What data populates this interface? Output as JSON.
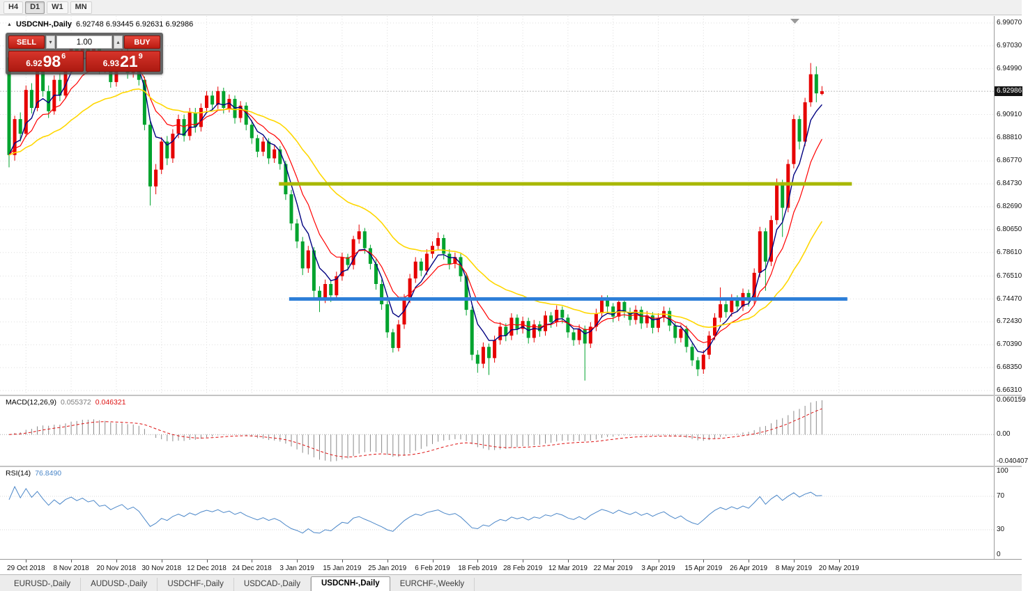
{
  "toolbar": {
    "timeframes": [
      {
        "label": "H4",
        "active": false
      },
      {
        "label": "D1",
        "active": true
      },
      {
        "label": "W1",
        "active": false
      },
      {
        "label": "MN",
        "active": false
      }
    ]
  },
  "chart": {
    "collapse_icon": "▲",
    "symbol_period": "USDCNH-,Daily",
    "ohlc_line": "6.92748 6.93445 6.92631 6.92986"
  },
  "one_click": {
    "sell_label": "SELL",
    "buy_label": "BUY",
    "volume": "1.00",
    "sell_price": {
      "prefix": "6.92",
      "big": "98",
      "sup": "6"
    },
    "buy_price": {
      "prefix": "6.93",
      "big": "21",
      "sup": "9"
    }
  },
  "price_axis": {
    "labels": [
      "6.99070",
      "6.97030",
      "6.94990",
      "6.90910",
      "6.88810",
      "6.86770",
      "6.84730",
      "6.82690",
      "6.80650",
      "6.78610",
      "6.76510",
      "6.74470",
      "6.72430",
      "6.70390",
      "6.68350",
      "6.66310"
    ],
    "current": "6.92986"
  },
  "macd_panel": {
    "label": "MACD(12,26,9)",
    "value_main": "0.055372",
    "value_signal": "0.046321",
    "axis_max": "0.060159",
    "axis_zero": "0.00",
    "axis_min": "-0.040407"
  },
  "rsi_panel": {
    "label": "RSI(14)",
    "value": "76.8490",
    "axis": [
      "100",
      "70",
      "30",
      "0"
    ],
    "axis_values": [
      100,
      70,
      30,
      0
    ]
  },
  "tabs": [
    {
      "label": "EURUSD-,Daily",
      "active": false
    },
    {
      "label": "AUDUSD-,Daily",
      "active": false
    },
    {
      "label": "USDCHF-,Daily",
      "active": false
    },
    {
      "label": "USDCAD-,Daily",
      "active": false
    },
    {
      "label": "USDCNH-,Daily",
      "active": true
    },
    {
      "label": "EURCHF-,Weekly",
      "active": false
    }
  ],
  "chart_data": {
    "type": "candlestick",
    "symbol": "USDCNH-",
    "timeframe": "Daily",
    "bull_color": "#e60000",
    "bear_color": "#00a32e",
    "grid_color": "#dedede",
    "current_price": 6.92986,
    "last_ohlc": {
      "open": 6.92748,
      "high": 6.93445,
      "low": 6.92631,
      "close": 6.92986
    },
    "date_labels": [
      "29 Oct 2018",
      "8 Nov 2018",
      "20 Nov 2018",
      "30 Nov 2018",
      "12 Dec 2018",
      "24 Dec 2018",
      "3 Jan 2019",
      "15 Jan 2019",
      "25 Jan 2019",
      "6 Feb 2019",
      "18 Feb 2019",
      "28 Feb 2019",
      "12 Mar 2019",
      "22 Mar 2019",
      "3 Apr 2019",
      "15 Apr 2019",
      "26 Apr 2019",
      "8 May 2019",
      "20 May 2019"
    ],
    "grid_start_index": 3,
    "grid_step": 8,
    "moving_averages": [
      {
        "type": "ema",
        "period": 5,
        "color": "#000080",
        "width": 1.4
      },
      {
        "type": "ema",
        "period": 10,
        "color": "#ff0000",
        "width": 1.2
      },
      {
        "type": "ema",
        "period": 30,
        "color": "#ffd700",
        "width": 1.6
      }
    ],
    "hlines": [
      {
        "name": "resistance-line-olive",
        "price": 6.8473,
        "color": "#a8b800",
        "width": 5,
        "from": 47.8,
        "to": 149.3
      },
      {
        "name": "support-line-blue",
        "price": 6.7447,
        "color": "#2e7fd8",
        "width": 5,
        "from": 49.6,
        "to": 148.5
      }
    ],
    "macd": {
      "fast": 12,
      "slow": 26,
      "signal": 9,
      "histogram_color": "#8a8a8a",
      "signal_color": "#dd1111"
    },
    "rsi": {
      "period": 14,
      "color": "#4a86c8",
      "levels": [
        70,
        30
      ]
    },
    "ohlc": [
      [
        6.96,
        6.968,
        6.862,
        6.873
      ],
      [
        6.873,
        6.908,
        6.868,
        6.905
      ],
      [
        6.905,
        6.911,
        6.885,
        6.892
      ],
      [
        6.892,
        6.935,
        6.889,
        6.931
      ],
      [
        6.931,
        6.937,
        6.91,
        6.915
      ],
      [
        6.915,
        6.952,
        6.912,
        6.948
      ],
      [
        6.948,
        6.953,
        6.925,
        6.93
      ],
      [
        6.93,
        6.935,
        6.906,
        6.912
      ],
      [
        6.912,
        6.944,
        6.909,
        6.94
      ],
      [
        6.94,
        6.946,
        6.921,
        6.926
      ],
      [
        6.926,
        6.957,
        6.923,
        6.953
      ],
      [
        6.953,
        6.974,
        6.95,
        6.97
      ],
      [
        6.97,
        6.975,
        6.953,
        6.958
      ],
      [
        6.958,
        6.979,
        6.955,
        6.975
      ],
      [
        6.975,
        6.979,
        6.957,
        6.962
      ],
      [
        6.962,
        6.975,
        6.958,
        6.971
      ],
      [
        6.971,
        6.974,
        6.945,
        6.95
      ],
      [
        6.95,
        6.96,
        6.946,
        6.956
      ],
      [
        6.956,
        6.959,
        6.933,
        6.938
      ],
      [
        6.938,
        6.956,
        6.934,
        6.952
      ],
      [
        6.952,
        6.969,
        6.948,
        6.965
      ],
      [
        6.965,
        6.968,
        6.941,
        6.946
      ],
      [
        6.946,
        6.962,
        6.942,
        6.958
      ],
      [
        6.958,
        6.961,
        6.935,
        6.94
      ],
      [
        6.94,
        6.943,
        6.895,
        6.9
      ],
      [
        6.9,
        6.903,
        6.828,
        6.845
      ],
      [
        6.845,
        6.865,
        6.838,
        6.86
      ],
      [
        6.86,
        6.889,
        6.856,
        6.885
      ],
      [
        6.885,
        6.89,
        6.864,
        6.87
      ],
      [
        6.87,
        6.896,
        6.866,
        6.892
      ],
      [
        6.892,
        6.909,
        6.888,
        6.905
      ],
      [
        6.905,
        6.909,
        6.885,
        6.89
      ],
      [
        6.89,
        6.915,
        6.886,
        6.911
      ],
      [
        6.911,
        6.915,
        6.893,
        6.898
      ],
      [
        6.898,
        6.919,
        6.894,
        6.915
      ],
      [
        6.915,
        6.93,
        6.911,
        6.926
      ],
      [
        6.926,
        6.93,
        6.913,
        6.918
      ],
      [
        6.918,
        6.934,
        6.914,
        6.93
      ],
      [
        6.93,
        6.933,
        6.91,
        6.915
      ],
      [
        6.915,
        6.927,
        6.911,
        6.923
      ],
      [
        6.923,
        6.926,
        6.901,
        6.906
      ],
      [
        6.906,
        6.921,
        6.902,
        6.917
      ],
      [
        6.917,
        6.92,
        6.895,
        6.9
      ],
      [
        6.9,
        6.904,
        6.883,
        6.888
      ],
      [
        6.888,
        6.891,
        6.871,
        6.876
      ],
      [
        6.876,
        6.889,
        6.872,
        6.885
      ],
      [
        6.885,
        6.888,
        6.865,
        6.87
      ],
      [
        6.87,
        6.882,
        6.866,
        6.878
      ],
      [
        6.878,
        6.881,
        6.86,
        6.865
      ],
      [
        6.865,
        6.868,
        6.833,
        6.838
      ],
      [
        6.838,
        6.842,
        6.806,
        6.812
      ],
      [
        6.812,
        6.816,
        6.79,
        6.796
      ],
      [
        6.796,
        6.8,
        6.766,
        6.772
      ],
      [
        6.772,
        6.792,
        6.768,
        6.788
      ],
      [
        6.788,
        6.791,
        6.746,
        6.752
      ],
      [
        6.752,
        6.756,
        6.733,
        6.745
      ],
      [
        6.745,
        6.762,
        6.741,
        6.758
      ],
      [
        6.758,
        6.761,
        6.742,
        6.748
      ],
      [
        6.748,
        6.769,
        6.744,
        6.765
      ],
      [
        6.765,
        6.786,
        6.761,
        6.782
      ],
      [
        6.782,
        6.785,
        6.77,
        6.775
      ],
      [
        6.775,
        6.801,
        6.771,
        6.798
      ],
      [
        6.798,
        6.811,
        6.794,
        6.805
      ],
      [
        6.805,
        6.808,
        6.785,
        6.79
      ],
      [
        6.79,
        6.793,
        6.771,
        6.776
      ],
      [
        6.776,
        6.78,
        6.753,
        6.758
      ],
      [
        6.758,
        6.762,
        6.735,
        6.74
      ],
      [
        6.74,
        6.743,
        6.71,
        6.715
      ],
      [
        6.715,
        6.718,
        6.697,
        6.701
      ],
      [
        6.701,
        6.726,
        6.698,
        6.722
      ],
      [
        6.722,
        6.749,
        6.718,
        6.745
      ],
      [
        6.745,
        6.767,
        6.741,
        6.763
      ],
      [
        6.763,
        6.782,
        6.759,
        6.778
      ],
      [
        6.778,
        6.781,
        6.765,
        6.77
      ],
      [
        6.77,
        6.789,
        6.766,
        6.785
      ],
      [
        6.785,
        6.796,
        6.781,
        6.792
      ],
      [
        6.792,
        6.804,
        6.788,
        6.799
      ],
      [
        6.799,
        6.802,
        6.78,
        6.785
      ],
      [
        6.785,
        6.789,
        6.771,
        6.776
      ],
      [
        6.776,
        6.786,
        6.772,
        6.782
      ],
      [
        6.782,
        6.785,
        6.76,
        6.765
      ],
      [
        6.765,
        6.768,
        6.73,
        6.735
      ],
      [
        6.735,
        6.738,
        6.69,
        6.695
      ],
      [
        6.695,
        6.699,
        6.679,
        6.687
      ],
      [
        6.687,
        6.706,
        6.683,
        6.702
      ],
      [
        6.702,
        6.705,
        6.677,
        6.692
      ],
      [
        6.692,
        6.712,
        6.688,
        6.708
      ],
      [
        6.708,
        6.724,
        6.704,
        6.72
      ],
      [
        6.72,
        6.723,
        6.707,
        6.712
      ],
      [
        6.712,
        6.732,
        6.708,
        6.728
      ],
      [
        6.728,
        6.731,
        6.713,
        6.718
      ],
      [
        6.718,
        6.729,
        6.714,
        6.725
      ],
      [
        6.725,
        6.728,
        6.705,
        6.71
      ],
      [
        6.71,
        6.726,
        6.706,
        6.722
      ],
      [
        6.722,
        6.725,
        6.711,
        6.716
      ],
      [
        6.716,
        6.734,
        6.712,
        6.73
      ],
      [
        6.73,
        6.733,
        6.719,
        6.724
      ],
      [
        6.724,
        6.739,
        6.72,
        6.735
      ],
      [
        6.735,
        6.738,
        6.723,
        6.728
      ],
      [
        6.728,
        6.731,
        6.71,
        6.715
      ],
      [
        6.715,
        6.718,
        6.703,
        6.708
      ],
      [
        6.708,
        6.722,
        6.704,
        6.718
      ],
      [
        6.718,
        6.721,
        6.672,
        6.705
      ],
      [
        6.705,
        6.724,
        6.701,
        6.72
      ],
      [
        6.72,
        6.736,
        6.716,
        6.732
      ],
      [
        6.732,
        6.748,
        6.728,
        6.744
      ],
      [
        6.744,
        6.748,
        6.733,
        6.738
      ],
      [
        6.738,
        6.741,
        6.724,
        6.729
      ],
      [
        6.729,
        6.746,
        6.725,
        6.742
      ],
      [
        6.742,
        6.745,
        6.728,
        6.733
      ],
      [
        6.733,
        6.737,
        6.721,
        6.726
      ],
      [
        6.726,
        6.739,
        6.722,
        6.735
      ],
      [
        6.735,
        6.738,
        6.718,
        6.723
      ],
      [
        6.723,
        6.734,
        6.719,
        6.73
      ],
      [
        6.73,
        6.733,
        6.714,
        6.719
      ],
      [
        6.719,
        6.732,
        6.715,
        6.728
      ],
      [
        6.728,
        6.738,
        6.724,
        6.734
      ],
      [
        6.734,
        6.737,
        6.716,
        6.721
      ],
      [
        6.721,
        6.724,
        6.705,
        6.71
      ],
      [
        6.71,
        6.722,
        6.706,
        6.718
      ],
      [
        6.718,
        6.721,
        6.697,
        6.702
      ],
      [
        6.702,
        6.705,
        6.685,
        6.69
      ],
      [
        6.69,
        6.693,
        6.676,
        6.682
      ],
      [
        6.682,
        6.699,
        6.678,
        6.695
      ],
      [
        6.695,
        6.716,
        6.691,
        6.712
      ],
      [
        6.712,
        6.732,
        6.708,
        6.728
      ],
      [
        6.728,
        6.755,
        6.724,
        6.74
      ],
      [
        6.74,
        6.743,
        6.728,
        6.733
      ],
      [
        6.733,
        6.749,
        6.729,
        6.745
      ],
      [
        6.745,
        6.748,
        6.733,
        6.738
      ],
      [
        6.738,
        6.754,
        6.734,
        6.75
      ],
      [
        6.75,
        6.753,
        6.738,
        6.743
      ],
      [
        6.743,
        6.772,
        6.739,
        6.768
      ],
      [
        6.768,
        6.809,
        6.764,
        6.805
      ],
      [
        6.805,
        6.808,
        6.752,
        6.778
      ],
      [
        6.778,
        6.819,
        6.774,
        6.815
      ],
      [
        6.815,
        6.852,
        6.811,
        6.848
      ],
      [
        6.848,
        6.851,
        6.8,
        6.826
      ],
      [
        6.826,
        6.869,
        6.822,
        6.865
      ],
      [
        6.865,
        6.909,
        6.861,
        6.905
      ],
      [
        6.905,
        6.908,
        6.878,
        6.885
      ],
      [
        6.885,
        6.924,
        6.881,
        6.92
      ],
      [
        6.92,
        6.955,
        6.916,
        6.945
      ],
      [
        6.945,
        6.952,
        6.92,
        6.928
      ],
      [
        6.92748,
        6.93445,
        6.92631,
        6.92986
      ]
    ]
  }
}
